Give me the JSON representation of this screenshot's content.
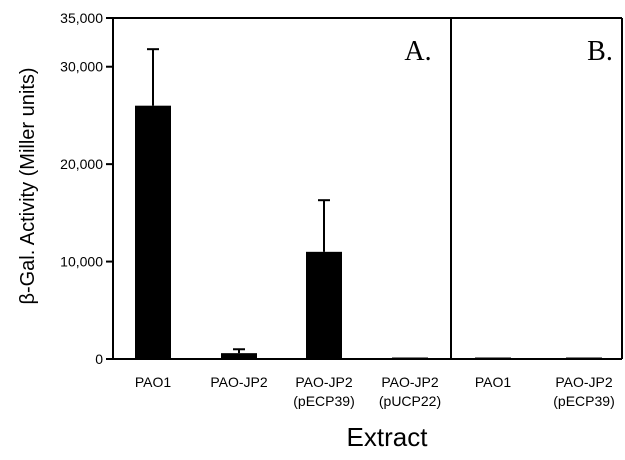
{
  "chart_data": {
    "type": "bar",
    "ylabel": "β-Gal. Activity (Miller units)",
    "xlabel": "Extract",
    "ylim": [
      0,
      35000
    ],
    "yticks": [
      0,
      10000,
      20000,
      30000,
      35000
    ],
    "ytick_labels": [
      "0",
      "10,000",
      "20,000",
      "30,000",
      "35,000"
    ],
    "grid": false,
    "legend": "none",
    "bar_color": "#000000",
    "panels": [
      {
        "label": "A.",
        "categories": [
          {
            "line1": "PAO1",
            "line2": ""
          },
          {
            "line1": "PAO-JP2",
            "line2": ""
          },
          {
            "line1": "PAO-JP2",
            "line2": "(pECP39)"
          },
          {
            "line1": "PAO-JP2",
            "line2": "(pUCP22)"
          }
        ],
        "values": [
          26000,
          600,
          11000,
          100
        ],
        "errors": [
          5800,
          400,
          5300,
          0
        ]
      },
      {
        "label": "B.",
        "categories": [
          {
            "line1": "PAO1",
            "line2": ""
          },
          {
            "line1": "PAO-JP2",
            "line2": "(pECP39)"
          }
        ],
        "values": [
          100,
          120
        ],
        "errors": [
          0,
          0
        ]
      }
    ]
  }
}
